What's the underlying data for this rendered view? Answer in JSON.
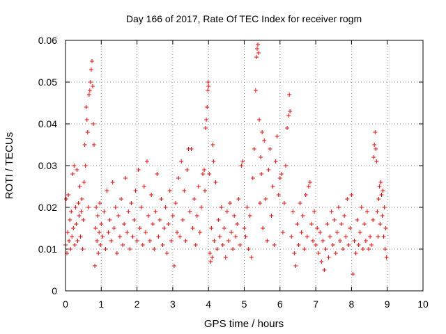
{
  "chart_data": {
    "type": "scatter",
    "title": "Day 166 of 2017, Rate Of TEC Index for receiver rogm",
    "xlabel": "GPS time / hours",
    "ylabel": "ROTI / TECUs",
    "xlim": [
      0,
      10
    ],
    "ylim": [
      0,
      0.06
    ],
    "xticks": [
      "0",
      "1",
      "2",
      "3",
      "4",
      "5",
      "6",
      "7",
      "8",
      "9",
      "10"
    ],
    "yticks": [
      "0",
      "0.01",
      "0.02",
      "0.03",
      "0.04",
      "0.05",
      "0.06"
    ],
    "grid": true,
    "marker": "+",
    "color": "#ff0000",
    "series": [
      {
        "name": "ROTI",
        "points": [
          [
            0.0,
            0.011
          ],
          [
            0.02,
            0.022
          ],
          [
            0.04,
            0.009
          ],
          [
            0.06,
            0.014
          ],
          [
            0.08,
            0.023
          ],
          [
            0.1,
            0.012
          ],
          [
            0.12,
            0.017
          ],
          [
            0.14,
            0.01
          ],
          [
            0.16,
            0.019
          ],
          [
            0.18,
            0.013
          ],
          [
            0.2,
            0.028
          ],
          [
            0.22,
            0.015
          ],
          [
            0.24,
            0.03
          ],
          [
            0.26,
            0.011
          ],
          [
            0.28,
            0.02
          ],
          [
            0.3,
            0.016
          ],
          [
            0.32,
            0.029
          ],
          [
            0.34,
            0.012
          ],
          [
            0.36,
            0.021
          ],
          [
            0.38,
            0.018
          ],
          [
            0.4,
            0.025
          ],
          [
            0.42,
            0.013
          ],
          [
            0.44,
            0.019
          ],
          [
            0.46,
            0.022
          ],
          [
            0.48,
            0.01
          ],
          [
            0.5,
            0.017
          ],
          [
            0.52,
            0.026
          ],
          [
            0.54,
            0.035
          ],
          [
            0.56,
            0.03
          ],
          [
            0.58,
            0.044
          ],
          [
            0.6,
            0.041
          ],
          [
            0.62,
            0.038
          ],
          [
            0.64,
            0.02
          ],
          [
            0.66,
            0.047
          ],
          [
            0.68,
            0.048
          ],
          [
            0.7,
            0.05
          ],
          [
            0.72,
            0.053
          ],
          [
            0.74,
            0.055
          ],
          [
            0.76,
            0.049
          ],
          [
            0.78,
            0.04
          ],
          [
            0.8,
            0.035
          ],
          [
            0.82,
            0.006
          ],
          [
            0.84,
            0.015
          ],
          [
            0.86,
            0.02
          ],
          [
            0.88,
            0.012
          ],
          [
            0.9,
            0.018
          ],
          [
            0.92,
            0.009
          ],
          [
            0.94,
            0.014
          ],
          [
            0.96,
            0.021
          ],
          [
            0.98,
            0.011
          ],
          [
            1.0,
            0.016
          ],
          [
            1.04,
            0.013
          ],
          [
            1.08,
            0.019
          ],
          [
            1.12,
            0.01
          ],
          [
            1.16,
            0.024
          ],
          [
            1.2,
            0.014
          ],
          [
            1.24,
            0.017
          ],
          [
            1.28,
            0.012
          ],
          [
            1.32,
            0.026
          ],
          [
            1.36,
            0.015
          ],
          [
            1.4,
            0.02
          ],
          [
            1.44,
            0.009
          ],
          [
            1.48,
            0.018
          ],
          [
            1.52,
            0.013
          ],
          [
            1.56,
            0.022
          ],
          [
            1.6,
            0.011
          ],
          [
            1.64,
            0.016
          ],
          [
            1.68,
            0.027
          ],
          [
            1.72,
            0.014
          ],
          [
            1.76,
            0.019
          ],
          [
            1.8,
            0.01
          ],
          [
            1.84,
            0.021
          ],
          [
            1.88,
            0.013
          ],
          [
            1.92,
            0.017
          ],
          [
            1.96,
            0.024
          ],
          [
            2.0,
            0.012
          ],
          [
            2.04,
            0.029
          ],
          [
            2.08,
            0.015
          ],
          [
            2.12,
            0.02
          ],
          [
            2.16,
            0.011
          ],
          [
            2.2,
            0.025
          ],
          [
            2.24,
            0.014
          ],
          [
            2.28,
            0.031
          ],
          [
            2.32,
            0.018
          ],
          [
            2.36,
            0.012
          ],
          [
            2.4,
            0.023
          ],
          [
            2.44,
            0.016
          ],
          [
            2.48,
            0.01
          ],
          [
            2.52,
            0.019
          ],
          [
            2.56,
            0.028
          ],
          [
            2.6,
            0.013
          ],
          [
            2.64,
            0.017
          ],
          [
            2.68,
            0.022
          ],
          [
            2.72,
            0.011
          ],
          [
            2.76,
            0.015
          ],
          [
            2.8,
            0.02
          ],
          [
            2.84,
            0.009
          ],
          [
            2.88,
            0.016
          ],
          [
            2.92,
            0.024
          ],
          [
            2.96,
            0.012
          ],
          [
            3.0,
            0.018
          ],
          [
            3.04,
            0.006
          ],
          [
            3.08,
            0.021
          ],
          [
            3.12,
            0.014
          ],
          [
            3.16,
            0.027
          ],
          [
            3.2,
            0.013
          ],
          [
            3.24,
            0.031
          ],
          [
            3.28,
            0.017
          ],
          [
            3.32,
            0.024
          ],
          [
            3.36,
            0.012
          ],
          [
            3.4,
            0.029
          ],
          [
            3.44,
            0.034
          ],
          [
            3.48,
            0.019
          ],
          [
            3.52,
            0.034
          ],
          [
            3.56,
            0.015
          ],
          [
            3.6,
            0.022
          ],
          [
            3.64,
            0.011
          ],
          [
            3.68,
            0.018
          ],
          [
            3.72,
            0.025
          ],
          [
            3.76,
            0.014
          ],
          [
            3.8,
            0.02
          ],
          [
            3.84,
            0.028
          ],
          [
            3.88,
            0.029
          ],
          [
            3.9,
            0.024
          ],
          [
            3.92,
            0.039
          ],
          [
            3.94,
            0.041
          ],
          [
            3.96,
            0.044
          ],
          [
            3.98,
            0.048
          ],
          [
            3.99,
            0.05
          ],
          [
            4.0,
            0.049
          ],
          [
            4.02,
            0.028
          ],
          [
            4.04,
            0.009
          ],
          [
            4.06,
            0.007
          ],
          [
            4.08,
            0.015
          ],
          [
            4.1,
            0.008
          ],
          [
            4.12,
            0.035
          ],
          [
            4.14,
            0.031
          ],
          [
            4.16,
            0.012
          ],
          [
            4.2,
            0.026
          ],
          [
            4.24,
            0.01
          ],
          [
            4.28,
            0.017
          ],
          [
            4.32,
            0.013
          ],
          [
            4.36,
            0.02
          ],
          [
            4.4,
            0.011
          ],
          [
            4.44,
            0.015
          ],
          [
            4.48,
            0.008
          ],
          [
            4.52,
            0.019
          ],
          [
            4.56,
            0.012
          ],
          [
            4.6,
            0.021
          ],
          [
            4.64,
            0.014
          ],
          [
            4.68,
            0.01
          ],
          [
            4.72,
            0.018
          ],
          [
            4.76,
            0.013
          ],
          [
            4.8,
            0.016
          ],
          [
            4.84,
            0.022
          ],
          [
            4.88,
            0.011
          ],
          [
            4.92,
            0.03
          ],
          [
            4.96,
            0.031
          ],
          [
            5.0,
            0.015
          ],
          [
            5.04,
            0.013
          ],
          [
            5.08,
            0.02
          ],
          [
            5.12,
            0.01
          ],
          [
            5.16,
            0.018
          ],
          [
            5.2,
            0.008
          ],
          [
            5.24,
            0.027
          ],
          [
            5.28,
            0.034
          ],
          [
            5.32,
            0.048
          ],
          [
            5.34,
            0.056
          ],
          [
            5.36,
            0.058
          ],
          [
            5.38,
            0.059
          ],
          [
            5.4,
            0.057
          ],
          [
            5.42,
            0.041
          ],
          [
            5.44,
            0.021
          ],
          [
            5.46,
            0.032
          ],
          [
            5.48,
            0.028
          ],
          [
            5.5,
            0.038
          ],
          [
            5.52,
            0.015
          ],
          [
            5.56,
            0.036
          ],
          [
            5.6,
            0.022
          ],
          [
            5.64,
            0.012
          ],
          [
            5.68,
            0.029
          ],
          [
            5.72,
            0.034
          ],
          [
            5.76,
            0.018
          ],
          [
            5.8,
            0.025
          ],
          [
            5.84,
            0.011
          ],
          [
            5.88,
            0.031
          ],
          [
            5.92,
            0.037
          ],
          [
            5.96,
            0.023
          ],
          [
            6.0,
            0.027
          ],
          [
            6.04,
            0.028
          ],
          [
            6.08,
            0.014
          ],
          [
            6.12,
            0.021
          ],
          [
            6.16,
            0.03
          ],
          [
            6.2,
            0.039
          ],
          [
            6.24,
            0.042
          ],
          [
            6.26,
            0.047
          ],
          [
            6.28,
            0.043
          ],
          [
            6.32,
            0.013
          ],
          [
            6.36,
            0.019
          ],
          [
            6.4,
            0.009
          ],
          [
            6.44,
            0.006
          ],
          [
            6.48,
            0.016
          ],
          [
            6.52,
            0.011
          ],
          [
            6.56,
            0.021
          ],
          [
            6.6,
            0.014
          ],
          [
            6.64,
            0.018
          ],
          [
            6.68,
            0.01
          ],
          [
            6.72,
            0.023
          ],
          [
            6.76,
            0.013
          ],
          [
            6.8,
            0.025
          ],
          [
            6.84,
            0.026
          ],
          [
            6.88,
            0.016
          ],
          [
            6.92,
            0.012
          ],
          [
            6.96,
            0.019
          ],
          [
            7.0,
            0.011
          ],
          [
            7.04,
            0.015
          ],
          [
            7.08,
            0.009
          ],
          [
            7.12,
            0.014
          ],
          [
            7.16,
            0.007
          ],
          [
            7.2,
            0.012
          ],
          [
            7.24,
            0.005
          ],
          [
            7.28,
            0.01
          ],
          [
            7.32,
            0.016
          ],
          [
            7.36,
            0.008
          ],
          [
            7.4,
            0.013
          ],
          [
            7.44,
            0.019
          ],
          [
            7.48,
            0.011
          ],
          [
            7.52,
            0.017
          ],
          [
            7.56,
            0.009
          ],
          [
            7.6,
            0.014
          ],
          [
            7.64,
            0.02
          ],
          [
            7.68,
            0.012
          ],
          [
            7.72,
            0.016
          ],
          [
            7.76,
            0.01
          ],
          [
            7.8,
            0.018
          ],
          [
            7.84,
            0.013
          ],
          [
            7.88,
            0.022
          ],
          [
            7.92,
            0.011
          ],
          [
            7.96,
            0.015
          ],
          [
            8.0,
            0.023
          ],
          [
            8.04,
            0.004
          ],
          [
            8.08,
            0.012
          ],
          [
            8.12,
            0.009
          ],
          [
            8.16,
            0.017
          ],
          [
            8.2,
            0.011
          ],
          [
            8.24,
            0.014
          ],
          [
            8.28,
            0.02
          ],
          [
            8.32,
            0.01
          ],
          [
            8.36,
            0.016
          ],
          [
            8.4,
            0.012
          ],
          [
            8.44,
            0.019
          ],
          [
            8.48,
            0.01
          ],
          [
            8.52,
            0.013
          ],
          [
            8.56,
            0.011
          ],
          [
            8.6,
            0.017
          ],
          [
            8.62,
            0.032
          ],
          [
            8.64,
            0.035
          ],
          [
            8.66,
            0.038
          ],
          [
            8.68,
            0.034
          ],
          [
            8.7,
            0.031
          ],
          [
            8.72,
            0.019
          ],
          [
            8.74,
            0.013
          ],
          [
            8.76,
            0.022
          ],
          [
            8.78,
            0.025
          ],
          [
            8.8,
            0.016
          ],
          [
            8.82,
            0.026
          ],
          [
            8.84,
            0.023
          ],
          [
            8.86,
            0.018
          ],
          [
            8.88,
            0.024
          ],
          [
            8.9,
            0.013
          ],
          [
            8.92,
            0.02
          ],
          [
            8.94,
            0.01
          ],
          [
            8.96,
            0.015
          ],
          [
            8.98,
            0.008
          ]
        ]
      }
    ]
  }
}
